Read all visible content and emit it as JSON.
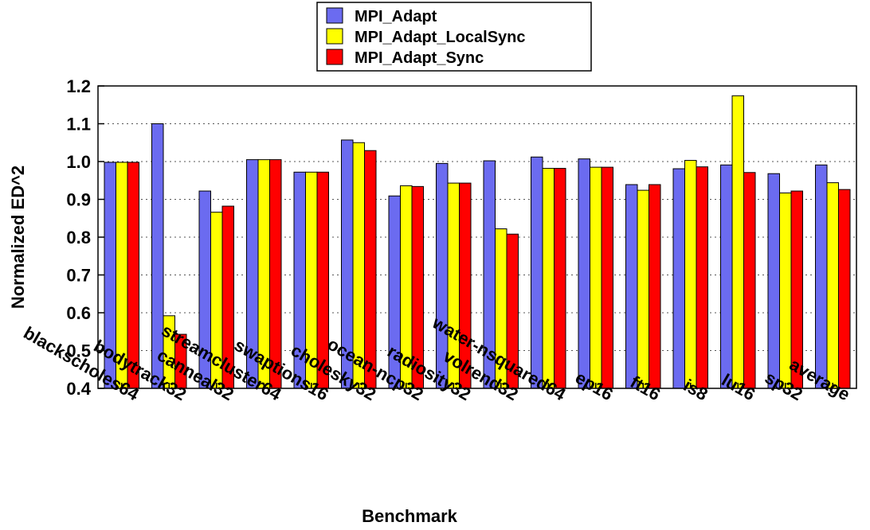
{
  "chart_data": {
    "type": "bar",
    "title": "",
    "xlabel": "Benchmark",
    "ylabel": "Normalized ED^2",
    "ylim": [
      0.4,
      1.2
    ],
    "yticks": [
      "0.4",
      "0.5",
      "0.6",
      "0.7",
      "0.8",
      "0.9",
      "1.0",
      "1.1",
      "1.2"
    ],
    "grid": "horizontal dotted",
    "legend_position": "top-center",
    "categories": [
      "blackscholes64",
      "bodytrack32",
      "canneal32",
      "streamcluster64",
      "swaptions16",
      "cholesky32",
      "ocean-ncp32",
      "radiosity32",
      "volrend32",
      "water-nsquared64",
      "ep16",
      "ft16",
      "is8",
      "lu16",
      "sp32",
      "average"
    ],
    "series": [
      {
        "name": "MPI_Adapt",
        "color": "#6b6bf0",
        "values": [
          0.998,
          1.1,
          0.922,
          1.005,
          0.972,
          1.057,
          0.909,
          0.995,
          1.002,
          1.012,
          1.007,
          0.939,
          0.981,
          0.991,
          0.968,
          0.991
        ]
      },
      {
        "name": "MPI_Adapt_LocalSync",
        "color": "#ffff00",
        "values": [
          0.998,
          0.592,
          0.866,
          1.005,
          0.972,
          1.05,
          0.936,
          0.943,
          0.822,
          0.982,
          0.985,
          0.924,
          1.003,
          1.174,
          0.917,
          0.944
        ]
      },
      {
        "name": "MPI_Adapt_Sync",
        "color": "#ff0000",
        "values": [
          0.998,
          0.543,
          0.882,
          1.005,
          0.972,
          1.029,
          0.934,
          0.943,
          0.808,
          0.982,
          0.985,
          0.939,
          0.986,
          0.971,
          0.922,
          0.926
        ]
      }
    ]
  }
}
